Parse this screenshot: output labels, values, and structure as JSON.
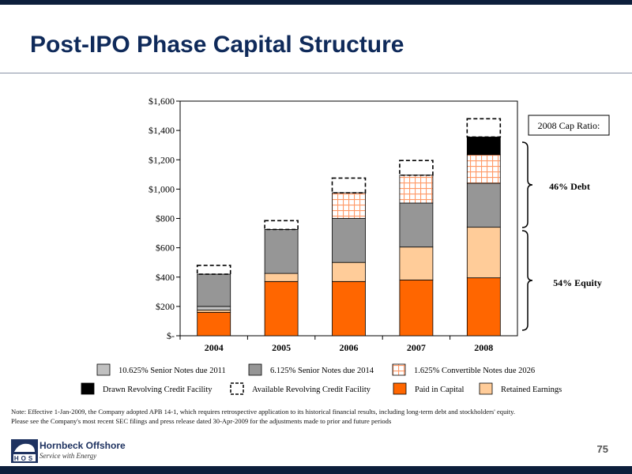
{
  "title": "Post-IPO Phase Capital Structure",
  "page_number": "75",
  "note_lines": [
    "Note:  Effective 1-Jan-2009, the Company adopted APB 14-1, which requires retrospective application to its historical financial results, including long-term debt and stockholders' equity.",
    "Please see the Company's most recent SEC filings and press release dated 30-Apr-2009 for the adjustments made to prior and future periods"
  ],
  "logo": {
    "letters": "HOS",
    "name": "Hornbeck Offshore",
    "tagline": "Service with Energy"
  },
  "colors": {
    "paid_in_capital": "#ff6600",
    "retained_earnings": "#ffcc99",
    "notes_2011": "#c0c0c0",
    "notes_2014": "#969696",
    "convertible_2026": "#ff9966",
    "drawn_revolver": "#000000",
    "title": "#0f2a5a",
    "band": "#0d1f3c"
  },
  "chart_data": {
    "type": "bar",
    "stacked": true,
    "categories": [
      "2004",
      "2005",
      "2006",
      "2007",
      "2008"
    ],
    "ylim": [
      0,
      1600
    ],
    "yticks": [
      0,
      200,
      400,
      600,
      800,
      1000,
      1200,
      1400,
      1600
    ],
    "ytick_labels": [
      "$-",
      "$200",
      "$400",
      "$600",
      "$800",
      "$1,000",
      "$1,200",
      "$1,400",
      "$1,600"
    ],
    "series": [
      {
        "name": "Paid in Capital",
        "key": "paid_in_capital",
        "pattern": "solid",
        "values": [
          160,
          370,
          370,
          380,
          395
        ]
      },
      {
        "name": "Retained Earnings",
        "key": "retained_earnings",
        "pattern": "solid",
        "values": [
          15,
          55,
          130,
          225,
          345
        ]
      },
      {
        "name": "10.625% Senior Notes due 2011",
        "key": "notes_2011",
        "pattern": "solid",
        "values": [
          25,
          0,
          0,
          0,
          0
        ]
      },
      {
        "name": "6.125% Senior Notes due 2014",
        "key": "notes_2014",
        "pattern": "solid",
        "values": [
          220,
          300,
          300,
          300,
          300
        ]
      },
      {
        "name": "1.625% Convertible Notes due 2026",
        "key": "convertible_2026",
        "pattern": "grid",
        "values": [
          0,
          0,
          175,
          190,
          195
        ]
      },
      {
        "name": "Drawn Revolving Credit Facility",
        "key": "drawn_revolver",
        "pattern": "solid",
        "values": [
          0,
          0,
          0,
          0,
          120
        ]
      },
      {
        "name": "Available Revolving Credit Facility",
        "key": "available_revolver",
        "pattern": "dashed",
        "values": [
          60,
          60,
          100,
          100,
          125
        ]
      }
    ],
    "legend_rows": [
      [
        "notes_2011",
        "notes_2014",
        "convertible_2026"
      ],
      [
        "drawn_revolver",
        "available_revolver",
        "paid_in_capital",
        "retained_earnings"
      ]
    ],
    "annotations": {
      "cap_ratio_label": "2008 Cap Ratio:",
      "debt_label": "46% Debt",
      "equity_label": "54% Equity"
    }
  }
}
